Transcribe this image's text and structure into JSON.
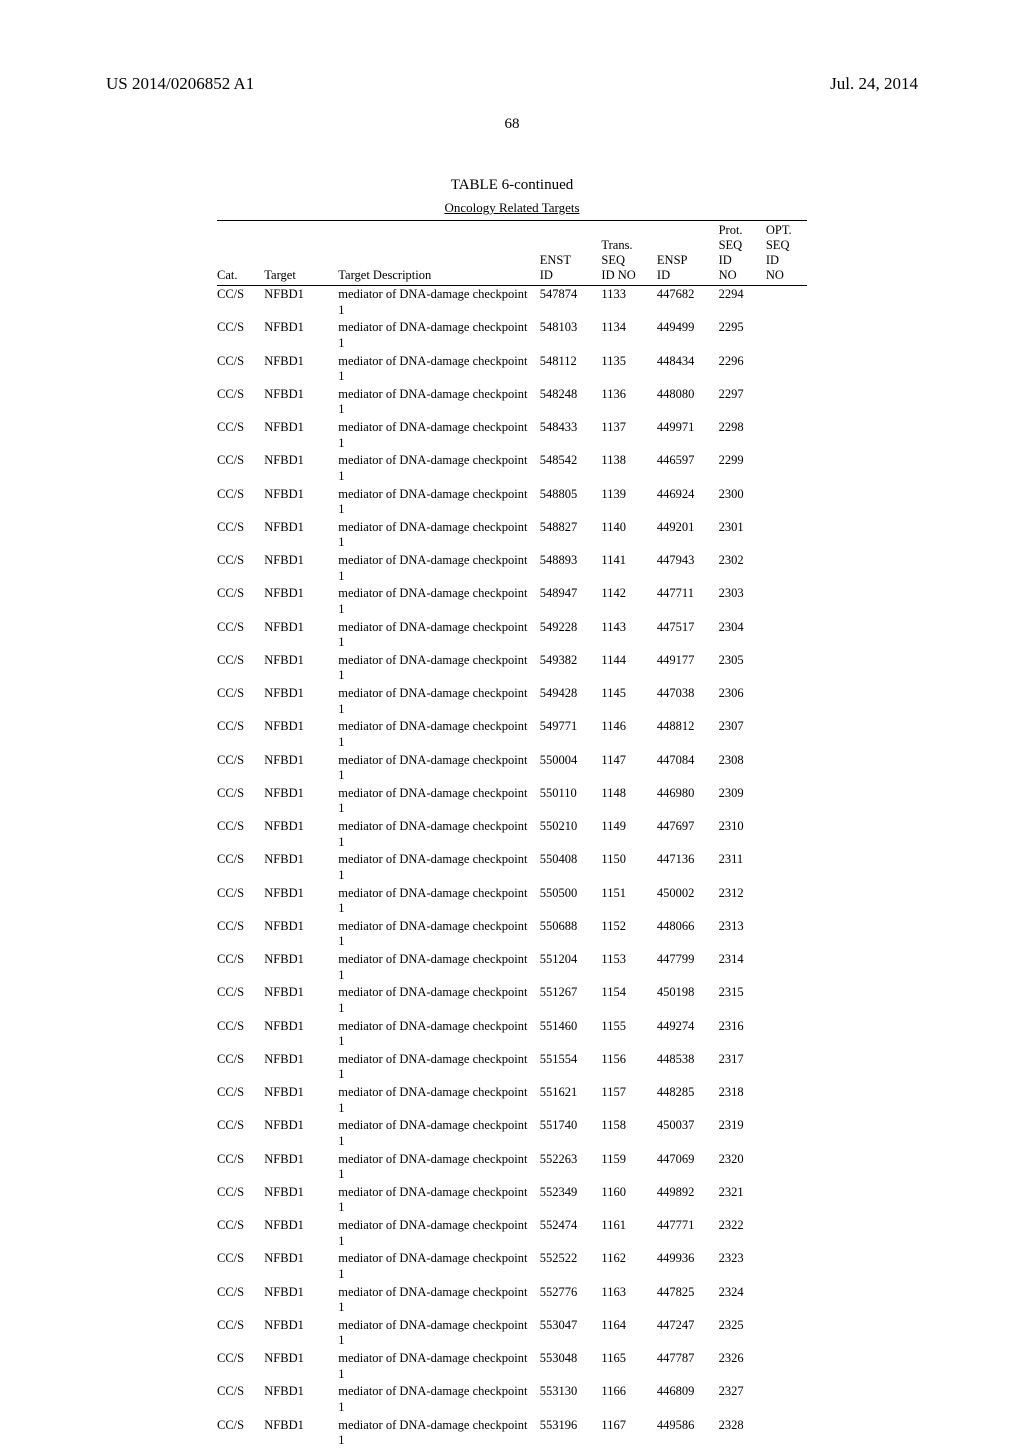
{
  "header": {
    "publication_number": "US 2014/0206852 A1",
    "publication_date": "Jul. 24, 2014"
  },
  "page_number": "68",
  "table": {
    "caption": "TABLE 6-continued",
    "subcaption": "Oncology Related Targets",
    "columns": {
      "cat": "Cat.",
      "target": "Target",
      "desc": "Target Description",
      "enst": "ENST\nID",
      "trans": "Trans.\nSEQ\nID NO",
      "ensp": "ENSP\nID",
      "prot": "Prot.\nSEQ\nID\nNO",
      "opt": "OPT.\nSEQ\nID\nNO"
    },
    "rows": [
      {
        "cat": "CC/S",
        "target": "NFBD1",
        "desc": "mediator of DNA-damage checkpoint 1",
        "enst": "547874",
        "trans": "1133",
        "ensp": "447682",
        "prot": "2294",
        "opt": ""
      },
      {
        "cat": "CC/S",
        "target": "NFBD1",
        "desc": "mediator of DNA-damage checkpoint 1",
        "enst": "548103",
        "trans": "1134",
        "ensp": "449499",
        "prot": "2295",
        "opt": ""
      },
      {
        "cat": "CC/S",
        "target": "NFBD1",
        "desc": "mediator of DNA-damage checkpoint 1",
        "enst": "548112",
        "trans": "1135",
        "ensp": "448434",
        "prot": "2296",
        "opt": ""
      },
      {
        "cat": "CC/S",
        "target": "NFBD1",
        "desc": "mediator of DNA-damage checkpoint 1",
        "enst": "548248",
        "trans": "1136",
        "ensp": "448080",
        "prot": "2297",
        "opt": ""
      },
      {
        "cat": "CC/S",
        "target": "NFBD1",
        "desc": "mediator of DNA-damage checkpoint 1",
        "enst": "548433",
        "trans": "1137",
        "ensp": "449971",
        "prot": "2298",
        "opt": ""
      },
      {
        "cat": "CC/S",
        "target": "NFBD1",
        "desc": "mediator of DNA-damage checkpoint 1",
        "enst": "548542",
        "trans": "1138",
        "ensp": "446597",
        "prot": "2299",
        "opt": ""
      },
      {
        "cat": "CC/S",
        "target": "NFBD1",
        "desc": "mediator of DNA-damage checkpoint 1",
        "enst": "548805",
        "trans": "1139",
        "ensp": "446924",
        "prot": "2300",
        "opt": ""
      },
      {
        "cat": "CC/S",
        "target": "NFBD1",
        "desc": "mediator of DNA-damage checkpoint 1",
        "enst": "548827",
        "trans": "1140",
        "ensp": "449201",
        "prot": "2301",
        "opt": ""
      },
      {
        "cat": "CC/S",
        "target": "NFBD1",
        "desc": "mediator of DNA-damage checkpoint 1",
        "enst": "548893",
        "trans": "1141",
        "ensp": "447943",
        "prot": "2302",
        "opt": ""
      },
      {
        "cat": "CC/S",
        "target": "NFBD1",
        "desc": "mediator of DNA-damage checkpoint 1",
        "enst": "548947",
        "trans": "1142",
        "ensp": "447711",
        "prot": "2303",
        "opt": ""
      },
      {
        "cat": "CC/S",
        "target": "NFBD1",
        "desc": "mediator of DNA-damage checkpoint 1",
        "enst": "549228",
        "trans": "1143",
        "ensp": "447517",
        "prot": "2304",
        "opt": ""
      },
      {
        "cat": "CC/S",
        "target": "NFBD1",
        "desc": "mediator of DNA-damage checkpoint 1",
        "enst": "549382",
        "trans": "1144",
        "ensp": "449177",
        "prot": "2305",
        "opt": ""
      },
      {
        "cat": "CC/S",
        "target": "NFBD1",
        "desc": "mediator of DNA-damage checkpoint 1",
        "enst": "549428",
        "trans": "1145",
        "ensp": "447038",
        "prot": "2306",
        "opt": ""
      },
      {
        "cat": "CC/S",
        "target": "NFBD1",
        "desc": "mediator of DNA-damage checkpoint 1",
        "enst": "549771",
        "trans": "1146",
        "ensp": "448812",
        "prot": "2307",
        "opt": ""
      },
      {
        "cat": "CC/S",
        "target": "NFBD1",
        "desc": "mediator of DNA-damage checkpoint 1",
        "enst": "550004",
        "trans": "1147",
        "ensp": "447084",
        "prot": "2308",
        "opt": ""
      },
      {
        "cat": "CC/S",
        "target": "NFBD1",
        "desc": "mediator of DNA-damage checkpoint 1",
        "enst": "550110",
        "trans": "1148",
        "ensp": "446980",
        "prot": "2309",
        "opt": ""
      },
      {
        "cat": "CC/S",
        "target": "NFBD1",
        "desc": "mediator of DNA-damage checkpoint 1",
        "enst": "550210",
        "trans": "1149",
        "ensp": "447697",
        "prot": "2310",
        "opt": ""
      },
      {
        "cat": "CC/S",
        "target": "NFBD1",
        "desc": "mediator of DNA-damage checkpoint 1",
        "enst": "550408",
        "trans": "1150",
        "ensp": "447136",
        "prot": "2311",
        "opt": ""
      },
      {
        "cat": "CC/S",
        "target": "NFBD1",
        "desc": "mediator of DNA-damage checkpoint 1",
        "enst": "550500",
        "trans": "1151",
        "ensp": "450002",
        "prot": "2312",
        "opt": ""
      },
      {
        "cat": "CC/S",
        "target": "NFBD1",
        "desc": "mediator of DNA-damage checkpoint 1",
        "enst": "550688",
        "trans": "1152",
        "ensp": "448066",
        "prot": "2313",
        "opt": ""
      },
      {
        "cat": "CC/S",
        "target": "NFBD1",
        "desc": "mediator of DNA-damage checkpoint 1",
        "enst": "551204",
        "trans": "1153",
        "ensp": "447799",
        "prot": "2314",
        "opt": ""
      },
      {
        "cat": "CC/S",
        "target": "NFBD1",
        "desc": "mediator of DNA-damage checkpoint 1",
        "enst": "551267",
        "trans": "1154",
        "ensp": "450198",
        "prot": "2315",
        "opt": ""
      },
      {
        "cat": "CC/S",
        "target": "NFBD1",
        "desc": "mediator of DNA-damage checkpoint 1",
        "enst": "551460",
        "trans": "1155",
        "ensp": "449274",
        "prot": "2316",
        "opt": ""
      },
      {
        "cat": "CC/S",
        "target": "NFBD1",
        "desc": "mediator of DNA-damage checkpoint 1",
        "enst": "551554",
        "trans": "1156",
        "ensp": "448538",
        "prot": "2317",
        "opt": ""
      },
      {
        "cat": "CC/S",
        "target": "NFBD1",
        "desc": "mediator of DNA-damage checkpoint 1",
        "enst": "551621",
        "trans": "1157",
        "ensp": "448285",
        "prot": "2318",
        "opt": ""
      },
      {
        "cat": "CC/S",
        "target": "NFBD1",
        "desc": "mediator of DNA-damage checkpoint 1",
        "enst": "551740",
        "trans": "1158",
        "ensp": "450037",
        "prot": "2319",
        "opt": ""
      },
      {
        "cat": "CC/S",
        "target": "NFBD1",
        "desc": "mediator of DNA-damage checkpoint 1",
        "enst": "552263",
        "trans": "1159",
        "ensp": "447069",
        "prot": "2320",
        "opt": ""
      },
      {
        "cat": "CC/S",
        "target": "NFBD1",
        "desc": "mediator of DNA-damage checkpoint 1",
        "enst": "552349",
        "trans": "1160",
        "ensp": "449892",
        "prot": "2321",
        "opt": ""
      },
      {
        "cat": "CC/S",
        "target": "NFBD1",
        "desc": "mediator of DNA-damage checkpoint 1",
        "enst": "552474",
        "trans": "1161",
        "ensp": "447771",
        "prot": "2322",
        "opt": ""
      },
      {
        "cat": "CC/S",
        "target": "NFBD1",
        "desc": "mediator of DNA-damage checkpoint 1",
        "enst": "552522",
        "trans": "1162",
        "ensp": "449936",
        "prot": "2323",
        "opt": ""
      },
      {
        "cat": "CC/S",
        "target": "NFBD1",
        "desc": "mediator of DNA-damage checkpoint 1",
        "enst": "552776",
        "trans": "1163",
        "ensp": "447825",
        "prot": "2324",
        "opt": ""
      },
      {
        "cat": "CC/S",
        "target": "NFBD1",
        "desc": "mediator of DNA-damage checkpoint 1",
        "enst": "553047",
        "trans": "1164",
        "ensp": "447247",
        "prot": "2325",
        "opt": ""
      },
      {
        "cat": "CC/S",
        "target": "NFBD1",
        "desc": "mediator of DNA-damage checkpoint 1",
        "enst": "553048",
        "trans": "1165",
        "ensp": "447787",
        "prot": "2326",
        "opt": ""
      },
      {
        "cat": "CC/S",
        "target": "NFBD1",
        "desc": "mediator of DNA-damage checkpoint 1",
        "enst": "553130",
        "trans": "1166",
        "ensp": "446809",
        "prot": "2327",
        "opt": ""
      },
      {
        "cat": "CC/S",
        "target": "NFBD1",
        "desc": "mediator of DNA-damage checkpoint 1",
        "enst": "553196",
        "trans": "1167",
        "ensp": "449586",
        "prot": "2328",
        "opt": ""
      }
    ]
  }
}
